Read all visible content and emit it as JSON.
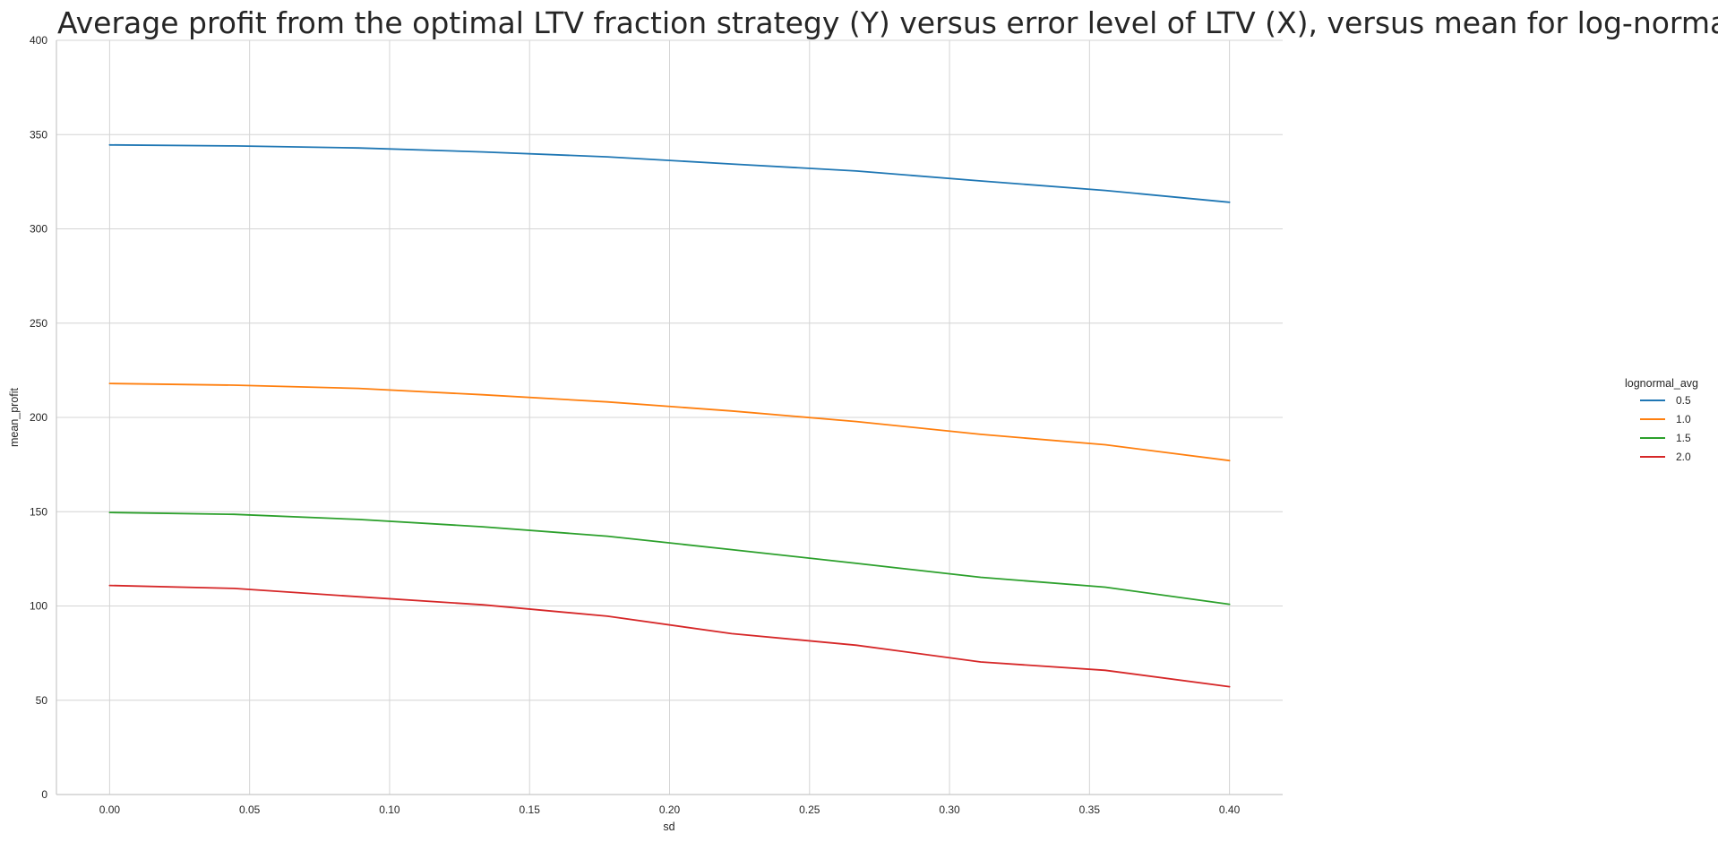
{
  "chart_data": {
    "type": "line",
    "title": "Average profit from the optimal LTV fraction strategy (Y) versus error level of LTV (X), versus mean for log-normal distribution",
    "xlabel": "sd",
    "ylabel": "mean_profit",
    "xlim": [
      -0.019,
      0.419
    ],
    "ylim": [
      0,
      400
    ],
    "x_ticks": [
      "0.00",
      "0.05",
      "0.10",
      "0.15",
      "0.20",
      "0.25",
      "0.30",
      "0.35",
      "0.40"
    ],
    "y_ticks": [
      "0",
      "50",
      "100",
      "150",
      "200",
      "250",
      "300",
      "350",
      "400"
    ],
    "grid": true,
    "legend": {
      "title": "lognormal_avg",
      "placement": "right"
    },
    "x": [
      0.0,
      0.0444,
      0.0889,
      0.1333,
      0.1778,
      0.2222,
      0.2667,
      0.3111,
      0.3556,
      0.4
    ],
    "series": [
      {
        "name": "0.5",
        "color": "#1f77b4",
        "values": [
          344.5,
          344.0,
          342.9,
          340.8,
          338.2,
          334.4,
          330.7,
          325.4,
          320.4,
          314.1
        ]
      },
      {
        "name": "1.0",
        "color": "#ff7f0e",
        "values": [
          218.0,
          217.1,
          215.4,
          212.0,
          208.2,
          203.4,
          197.8,
          191.0,
          185.5,
          177.1
        ]
      },
      {
        "name": "1.5",
        "color": "#2ca02c",
        "values": [
          149.6,
          148.6,
          145.9,
          142.0,
          137.0,
          129.9,
          122.6,
          115.2,
          110.0,
          100.9
        ]
      },
      {
        "name": "2.0",
        "color": "#d62728",
        "values": [
          110.9,
          109.3,
          104.9,
          100.6,
          94.6,
          85.3,
          79.2,
          70.3,
          65.9,
          57.2
        ]
      }
    ]
  }
}
